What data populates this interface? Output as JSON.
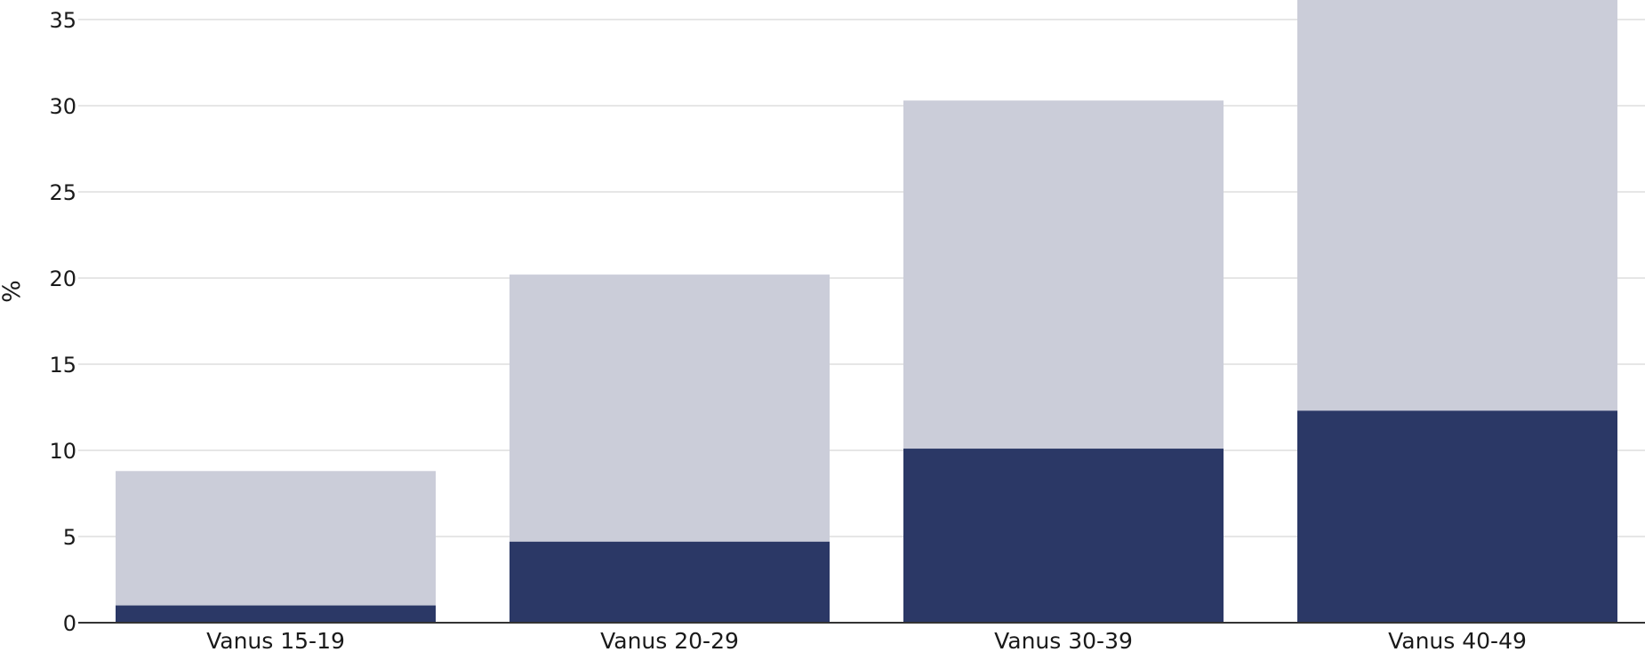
{
  "chart_data": {
    "type": "bar",
    "stacked": false,
    "overlay": true,
    "title": "",
    "xlabel": "",
    "ylabel": "%",
    "ylim": [
      0,
      35
    ],
    "yticks": [
      0,
      5,
      10,
      15,
      20,
      25,
      30,
      35
    ],
    "grid": true,
    "legend": "none",
    "categories": [
      "Vanus 15-19",
      "Vanus 20-29",
      "Vanus 30-39",
      "Vanus 40-49"
    ],
    "series": [
      {
        "color": "#cbcdd9",
        "values": [
          8.8,
          20.2,
          30.3,
          36.5
        ]
      },
      {
        "color": "#2b3866",
        "values": [
          1.0,
          4.7,
          10.1,
          12.3
        ]
      }
    ]
  }
}
